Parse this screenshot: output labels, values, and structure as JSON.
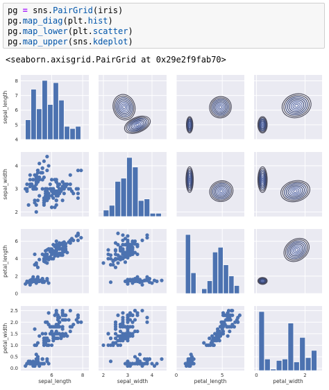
{
  "code": {
    "lines": [
      [
        {
          "t": "pg",
          "c": "name"
        },
        {
          "t": " = ",
          "c": "op"
        },
        {
          "t": "sns",
          "c": "name"
        },
        {
          "t": ".",
          "c": "punc"
        },
        {
          "t": "PairGrid",
          "c": "attr"
        },
        {
          "t": "(iris)",
          "c": "punc"
        }
      ],
      [
        {
          "t": "pg",
          "c": "name"
        },
        {
          "t": ".",
          "c": "punc"
        },
        {
          "t": "map_diag",
          "c": "attr"
        },
        {
          "t": "(plt",
          "c": "punc"
        },
        {
          "t": ".",
          "c": "punc"
        },
        {
          "t": "hist",
          "c": "attr"
        },
        {
          "t": ")",
          "c": "punc"
        }
      ],
      [
        {
          "t": "pg",
          "c": "name"
        },
        {
          "t": ".",
          "c": "punc"
        },
        {
          "t": "map_lower",
          "c": "attr"
        },
        {
          "t": "(plt",
          "c": "punc"
        },
        {
          "t": ".",
          "c": "punc"
        },
        {
          "t": "scatter",
          "c": "attr"
        },
        {
          "t": ")",
          "c": "punc"
        }
      ],
      [
        {
          "t": "pg",
          "c": "name"
        },
        {
          "t": ".",
          "c": "punc"
        },
        {
          "t": "map_upper",
          "c": "attr"
        },
        {
          "t": "(sns",
          "c": "punc"
        },
        {
          "t": ".",
          "c": "punc"
        },
        {
          "t": "kdeplot",
          "c": "attr"
        },
        {
          "t": ")",
          "c": "punc"
        }
      ]
    ]
  },
  "output_text": "<seaborn.axisgrid.PairGrid at 0x29e2f9fab70>",
  "colors": {
    "axes_bg": "#eaeaf2",
    "grid": "#ffffff",
    "marker": "#4c72b0",
    "kde": "#2b2b3b",
    "text": "#333333"
  },
  "chart_data": {
    "type": "scatter",
    "variables": [
      "sepal_length",
      "sepal_width",
      "petal_length",
      "petal_width"
    ],
    "xlabels": [
      "sepal_length",
      "sepal_width",
      "petal_length",
      "petal_width"
    ],
    "ylabels": [
      "sepal_length",
      "sepal_width",
      "petal_length",
      "petal_width"
    ],
    "lims": [
      [
        4.0,
        8.4
      ],
      [
        1.8,
        4.6
      ],
      [
        0.0,
        7.4
      ],
      [
        -0.1,
        2.7
      ]
    ],
    "yticks": [
      [
        4,
        5,
        6,
        7,
        8
      ],
      [
        2,
        3,
        4
      ],
      [
        0,
        2,
        4,
        6,
        8
      ],
      [
        0.0,
        0.5,
        1.0,
        1.5,
        2.0,
        2.5
      ]
    ],
    "yticklabels": [
      [
        "4",
        "5",
        "6",
        "7",
        "8"
      ],
      [
        "2",
        "3",
        "4"
      ],
      [
        "0",
        "2",
        "4",
        "6",
        "8"
      ],
      [
        "0.0",
        "0.5",
        "1.0",
        "1.5",
        "2.0",
        "2.5"
      ]
    ],
    "xticks": [
      [
        6,
        8
      ],
      [
        2,
        3,
        4
      ],
      [
        0,
        5
      ],
      [
        0,
        2
      ]
    ],
    "xticklabels": [
      [
        "6",
        "8"
      ],
      [
        "2",
        "3",
        "4"
      ],
      [
        "0",
        "5"
      ],
      [
        "0",
        "2"
      ]
    ],
    "hist": [
      {
        "edges": [
          4.3,
          4.66,
          5.02,
          5.38,
          5.74,
          6.1,
          6.46,
          6.82,
          7.18,
          7.54,
          7.9
        ],
        "counts": [
          9,
          23,
          14,
          27,
          16,
          26,
          18,
          6,
          5,
          6
        ]
      },
      {
        "edges": [
          2.0,
          2.24,
          2.48,
          2.72,
          2.96,
          3.2,
          3.44,
          3.68,
          3.92,
          4.16,
          4.4
        ],
        "counts": [
          4,
          7,
          22,
          24,
          37,
          31,
          10,
          11,
          2,
          2
        ]
      },
      {
        "edges": [
          1.0,
          1.59,
          2.18,
          2.77,
          3.36,
          3.95,
          4.54,
          5.13,
          5.72,
          6.31,
          6.9
        ],
        "counts": [
          37,
          13,
          0,
          3,
          8,
          26,
          29,
          18,
          11,
          5
        ]
      },
      {
        "edges": [
          0.1,
          0.34,
          0.58,
          0.82,
          1.06,
          1.3,
          1.54,
          1.78,
          2.02,
          2.26,
          2.5
        ],
        "counts": [
          41,
          8,
          1,
          7,
          8,
          33,
          6,
          23,
          9,
          14
        ]
      }
    ],
    "iris": [
      [
        5.1,
        3.5,
        1.4,
        0.2
      ],
      [
        4.9,
        3.0,
        1.4,
        0.2
      ],
      [
        4.7,
        3.2,
        1.3,
        0.2
      ],
      [
        4.6,
        3.1,
        1.5,
        0.2
      ],
      [
        5.0,
        3.6,
        1.4,
        0.2
      ],
      [
        5.4,
        3.9,
        1.7,
        0.4
      ],
      [
        4.6,
        3.4,
        1.4,
        0.3
      ],
      [
        5.0,
        3.4,
        1.5,
        0.2
      ],
      [
        4.4,
        2.9,
        1.4,
        0.2
      ],
      [
        4.9,
        3.1,
        1.5,
        0.1
      ],
      [
        5.4,
        3.7,
        1.5,
        0.2
      ],
      [
        4.8,
        3.4,
        1.6,
        0.2
      ],
      [
        4.8,
        3.0,
        1.4,
        0.1
      ],
      [
        4.3,
        3.0,
        1.1,
        0.1
      ],
      [
        5.8,
        4.0,
        1.2,
        0.2
      ],
      [
        5.7,
        4.4,
        1.5,
        0.4
      ],
      [
        5.4,
        3.9,
        1.3,
        0.4
      ],
      [
        5.1,
        3.5,
        1.4,
        0.3
      ],
      [
        5.7,
        3.8,
        1.7,
        0.3
      ],
      [
        5.1,
        3.8,
        1.5,
        0.3
      ],
      [
        5.4,
        3.4,
        1.7,
        0.2
      ],
      [
        5.1,
        3.7,
        1.5,
        0.4
      ],
      [
        4.6,
        3.6,
        1.0,
        0.2
      ],
      [
        5.1,
        3.3,
        1.7,
        0.5
      ],
      [
        4.8,
        3.4,
        1.9,
        0.2
      ],
      [
        5.0,
        3.0,
        1.6,
        0.2
      ],
      [
        5.0,
        3.4,
        1.6,
        0.4
      ],
      [
        5.2,
        3.5,
        1.5,
        0.2
      ],
      [
        5.2,
        3.4,
        1.4,
        0.2
      ],
      [
        4.7,
        3.2,
        1.6,
        0.2
      ],
      [
        4.8,
        3.1,
        1.6,
        0.2
      ],
      [
        5.4,
        3.4,
        1.5,
        0.4
      ],
      [
        5.2,
        4.1,
        1.5,
        0.1
      ],
      [
        5.5,
        4.2,
        1.4,
        0.2
      ],
      [
        4.9,
        3.1,
        1.5,
        0.2
      ],
      [
        5.0,
        3.2,
        1.2,
        0.2
      ],
      [
        5.5,
        3.5,
        1.3,
        0.2
      ],
      [
        4.9,
        3.6,
        1.4,
        0.1
      ],
      [
        4.4,
        3.0,
        1.3,
        0.2
      ],
      [
        5.1,
        3.4,
        1.5,
        0.2
      ],
      [
        5.0,
        3.5,
        1.3,
        0.3
      ],
      [
        4.5,
        2.3,
        1.3,
        0.3
      ],
      [
        4.4,
        3.2,
        1.3,
        0.2
      ],
      [
        5.0,
        3.5,
        1.6,
        0.6
      ],
      [
        5.1,
        3.8,
        1.9,
        0.4
      ],
      [
        4.8,
        3.0,
        1.4,
        0.3
      ],
      [
        5.1,
        3.8,
        1.6,
        0.2
      ],
      [
        4.6,
        3.2,
        1.4,
        0.2
      ],
      [
        5.3,
        3.7,
        1.5,
        0.2
      ],
      [
        5.0,
        3.3,
        1.4,
        0.2
      ],
      [
        7.0,
        3.2,
        4.7,
        1.4
      ],
      [
        6.4,
        3.2,
        4.5,
        1.5
      ],
      [
        6.9,
        3.1,
        4.9,
        1.5
      ],
      [
        5.5,
        2.3,
        4.0,
        1.3
      ],
      [
        6.5,
        2.8,
        4.6,
        1.5
      ],
      [
        5.7,
        2.8,
        4.5,
        1.3
      ],
      [
        6.3,
        3.3,
        4.7,
        1.6
      ],
      [
        4.9,
        2.4,
        3.3,
        1.0
      ],
      [
        6.6,
        2.9,
        4.6,
        1.3
      ],
      [
        5.2,
        2.7,
        3.9,
        1.4
      ],
      [
        5.0,
        2.0,
        3.5,
        1.0
      ],
      [
        5.9,
        3.0,
        4.2,
        1.5
      ],
      [
        6.0,
        2.2,
        4.0,
        1.0
      ],
      [
        6.1,
        2.9,
        4.7,
        1.4
      ],
      [
        5.6,
        2.9,
        3.6,
        1.3
      ],
      [
        6.7,
        3.1,
        4.4,
        1.4
      ],
      [
        5.6,
        3.0,
        4.5,
        1.5
      ],
      [
        5.8,
        2.7,
        4.1,
        1.0
      ],
      [
        6.2,
        2.2,
        4.5,
        1.5
      ],
      [
        5.6,
        2.5,
        3.9,
        1.1
      ],
      [
        5.9,
        3.2,
        4.8,
        1.8
      ],
      [
        6.1,
        2.8,
        4.0,
        1.3
      ],
      [
        6.3,
        2.5,
        4.9,
        1.5
      ],
      [
        6.1,
        2.8,
        4.7,
        1.2
      ],
      [
        6.4,
        2.9,
        4.3,
        1.3
      ],
      [
        6.6,
        3.0,
        4.4,
        1.4
      ],
      [
        6.8,
        2.8,
        4.8,
        1.4
      ],
      [
        6.7,
        3.0,
        5.0,
        1.7
      ],
      [
        6.0,
        2.9,
        4.5,
        1.5
      ],
      [
        5.7,
        2.6,
        3.5,
        1.0
      ],
      [
        5.5,
        2.4,
        3.8,
        1.1
      ],
      [
        5.5,
        2.4,
        3.7,
        1.0
      ],
      [
        5.8,
        2.7,
        3.9,
        1.2
      ],
      [
        6.0,
        2.7,
        5.1,
        1.6
      ],
      [
        5.4,
        3.0,
        4.5,
        1.5
      ],
      [
        6.0,
        3.4,
        4.5,
        1.6
      ],
      [
        6.7,
        3.1,
        4.7,
        1.5
      ],
      [
        6.3,
        2.3,
        4.4,
        1.3
      ],
      [
        5.6,
        3.0,
        4.1,
        1.3
      ],
      [
        5.5,
        2.5,
        4.0,
        1.3
      ],
      [
        5.5,
        2.6,
        4.4,
        1.2
      ],
      [
        6.1,
        3.0,
        4.6,
        1.4
      ],
      [
        5.8,
        2.6,
        4.0,
        1.2
      ],
      [
        5.0,
        2.3,
        3.3,
        1.0
      ],
      [
        5.6,
        2.7,
        4.2,
        1.3
      ],
      [
        5.7,
        3.0,
        4.2,
        1.2
      ],
      [
        5.7,
        2.9,
        4.2,
        1.3
      ],
      [
        6.2,
        2.9,
        4.3,
        1.3
      ],
      [
        5.1,
        2.5,
        3.0,
        1.1
      ],
      [
        5.7,
        2.8,
        4.1,
        1.3
      ],
      [
        6.3,
        3.3,
        6.0,
        2.5
      ],
      [
        5.8,
        2.7,
        5.1,
        1.9
      ],
      [
        7.1,
        3.0,
        5.9,
        2.1
      ],
      [
        6.3,
        2.9,
        5.6,
        1.8
      ],
      [
        6.5,
        3.0,
        5.8,
        2.2
      ],
      [
        7.6,
        3.0,
        6.6,
        2.1
      ],
      [
        4.9,
        2.5,
        4.5,
        1.7
      ],
      [
        7.3,
        2.9,
        6.3,
        1.8
      ],
      [
        6.7,
        2.5,
        5.8,
        1.8
      ],
      [
        7.2,
        3.6,
        6.1,
        2.5
      ],
      [
        6.5,
        3.2,
        5.1,
        2.0
      ],
      [
        6.4,
        2.7,
        5.3,
        1.9
      ],
      [
        6.8,
        3.0,
        5.5,
        2.1
      ],
      [
        5.7,
        2.5,
        5.0,
        2.0
      ],
      [
        5.8,
        2.8,
        5.1,
        2.4
      ],
      [
        6.4,
        3.2,
        5.3,
        2.3
      ],
      [
        6.5,
        3.0,
        5.5,
        1.8
      ],
      [
        7.7,
        3.8,
        6.7,
        2.2
      ],
      [
        7.7,
        2.6,
        6.9,
        2.3
      ],
      [
        6.0,
        2.2,
        5.0,
        1.5
      ],
      [
        6.9,
        3.2,
        5.7,
        2.3
      ],
      [
        5.6,
        2.8,
        4.9,
        2.0
      ],
      [
        7.7,
        2.8,
        6.7,
        2.0
      ],
      [
        6.3,
        2.7,
        4.9,
        1.8
      ],
      [
        6.7,
        3.3,
        5.7,
        2.1
      ],
      [
        7.2,
        3.2,
        6.0,
        1.8
      ],
      [
        6.2,
        2.8,
        4.8,
        1.8
      ],
      [
        6.1,
        3.0,
        4.9,
        1.8
      ],
      [
        6.4,
        2.8,
        5.6,
        2.1
      ],
      [
        7.2,
        3.0,
        5.8,
        1.6
      ],
      [
        7.4,
        2.8,
        6.1,
        1.9
      ],
      [
        7.9,
        3.8,
        6.4,
        2.0
      ],
      [
        6.4,
        2.8,
        5.6,
        2.2
      ],
      [
        6.3,
        2.8,
        5.1,
        1.5
      ],
      [
        6.1,
        2.6,
        5.6,
        1.4
      ],
      [
        7.7,
        3.0,
        6.1,
        2.3
      ],
      [
        6.3,
        3.4,
        5.6,
        2.4
      ],
      [
        6.4,
        3.1,
        5.5,
        1.8
      ],
      [
        6.0,
        3.0,
        4.8,
        1.8
      ],
      [
        6.9,
        3.1,
        5.4,
        2.1
      ],
      [
        6.7,
        3.1,
        5.6,
        2.4
      ],
      [
        6.9,
        3.1,
        5.1,
        2.3
      ],
      [
        5.8,
        2.7,
        5.1,
        1.9
      ],
      [
        6.8,
        3.2,
        5.9,
        2.3
      ],
      [
        6.7,
        3.3,
        5.7,
        2.5
      ],
      [
        6.7,
        3.0,
        5.2,
        2.3
      ],
      [
        6.3,
        2.5,
        5.0,
        1.9
      ],
      [
        6.5,
        3.0,
        5.2,
        2.0
      ],
      [
        6.2,
        3.4,
        5.4,
        2.3
      ],
      [
        5.9,
        3.0,
        5.1,
        1.8
      ]
    ],
    "kde": [
      {
        "row": 0,
        "col": 1,
        "peaks": [
          {
            "cx": 3.4,
            "cy": 5.0,
            "sx": 0.35,
            "sy": 0.32,
            "rot": 0.5
          },
          {
            "cx": 2.85,
            "cy": 6.2,
            "sx": 0.28,
            "sy": 0.55,
            "rot": 0.4
          }
        ]
      },
      {
        "row": 0,
        "col": 2,
        "peaks": [
          {
            "cx": 1.45,
            "cy": 5.0,
            "sx": 0.22,
            "sy": 0.35,
            "rot": 0.0
          },
          {
            "cx": 4.8,
            "cy": 6.2,
            "sx": 0.75,
            "sy": 0.45,
            "rot": 0.7
          }
        ]
      },
      {
        "row": 0,
        "col": 3,
        "peaks": [
          {
            "cx": 0.25,
            "cy": 5.0,
            "sx": 0.12,
            "sy": 0.35,
            "rot": 0.0
          },
          {
            "cx": 1.65,
            "cy": 6.3,
            "sx": 0.38,
            "sy": 0.5,
            "rot": 0.4
          }
        ]
      },
      {
        "row": 1,
        "col": 2,
        "peaks": [
          {
            "cx": 1.45,
            "cy": 3.4,
            "sx": 0.25,
            "sy": 0.35,
            "rot": 0.0
          },
          {
            "cx": 4.9,
            "cy": 2.9,
            "sx": 0.8,
            "sy": 0.28,
            "rot": 0.3
          }
        ]
      },
      {
        "row": 1,
        "col": 3,
        "peaks": [
          {
            "cx": 0.25,
            "cy": 3.4,
            "sx": 0.12,
            "sy": 0.35,
            "rot": 0.0
          },
          {
            "cx": 1.6,
            "cy": 2.9,
            "sx": 0.38,
            "sy": 0.28,
            "rot": 0.3
          }
        ]
      },
      {
        "row": 2,
        "col": 3,
        "peaks": [
          {
            "cx": 0.25,
            "cy": 1.45,
            "sx": 0.12,
            "sy": 0.25,
            "rot": 0.0
          },
          {
            "cx": 1.65,
            "cy": 5.0,
            "sx": 0.35,
            "sy": 0.75,
            "rot": 0.8
          }
        ]
      }
    ]
  }
}
